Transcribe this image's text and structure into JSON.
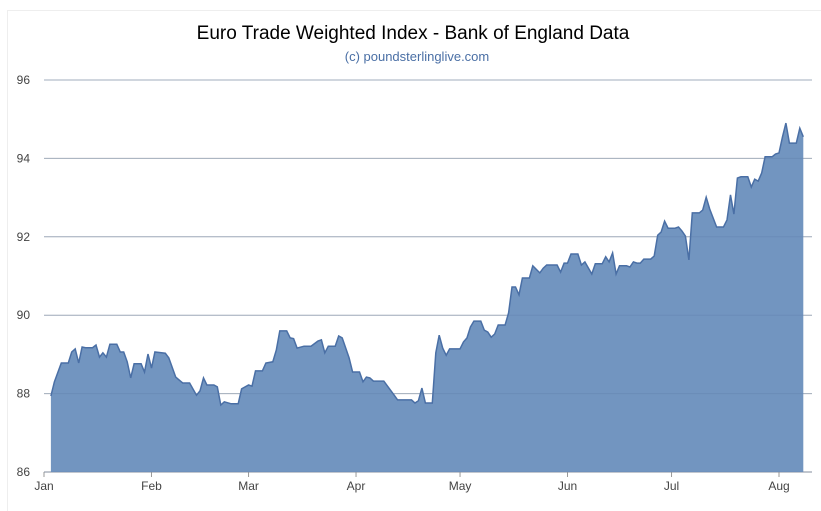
{
  "chart_data": {
    "type": "area",
    "title": "Euro Trade Weighted Index - Bank of England Data",
    "subtitle": "(c) poundsterlinglive.com",
    "xlabel": "",
    "ylabel": "",
    "ylim": [
      86,
      96
    ],
    "yticks": [
      "86",
      "88",
      "90",
      "92",
      "94",
      "96"
    ],
    "xticks": [
      "Jan",
      "Feb",
      "Mar",
      "Apr",
      "May",
      "Jun",
      "Jul",
      "Aug"
    ],
    "grid": true,
    "legend": "none",
    "colors": {
      "fill": "#7295c0",
      "line": "#4a6fa5",
      "grid": "#c8c8c8"
    },
    "x": [
      "01-03",
      "01-04",
      "01-06",
      "01-08",
      "01-09",
      "01-10",
      "01-11",
      "01-12",
      "01-13",
      "01-15",
      "01-16",
      "01-17",
      "01-18",
      "01-19",
      "01-20",
      "01-22",
      "01-23",
      "01-24",
      "01-25",
      "01-26",
      "01-27",
      "01-29",
      "01-30",
      "01-31",
      "02-01",
      "02-02",
      "02-05",
      "02-06",
      "02-08",
      "02-10",
      "02-12",
      "02-14",
      "02-15",
      "02-16",
      "02-17",
      "02-19",
      "02-20",
      "02-21",
      "02-22",
      "02-24",
      "02-26",
      "02-27",
      "03-01",
      "03-02",
      "03-03",
      "03-05",
      "03-06",
      "03-08",
      "03-09",
      "03-10",
      "03-12",
      "03-13",
      "03-14",
      "03-15",
      "03-17",
      "03-19",
      "03-21",
      "03-22",
      "03-23",
      "03-24",
      "03-26",
      "03-27",
      "03-28",
      "03-30",
      "03-31",
      "04-02",
      "04-03",
      "04-04",
      "04-05",
      "04-06",
      "04-09",
      "04-12",
      "04-13",
      "04-17",
      "04-18",
      "04-19",
      "04-20",
      "04-21",
      "04-23",
      "04-24",
      "04-25",
      "04-26",
      "04-27",
      "04-28",
      "05-01",
      "05-02",
      "05-03",
      "05-04",
      "05-05",
      "05-07",
      "05-08",
      "05-09",
      "05-10",
      "05-11",
      "05-12",
      "05-14",
      "05-15",
      "05-16",
      "05-17",
      "05-18",
      "05-19",
      "05-21",
      "05-22",
      "05-24",
      "05-25",
      "05-26",
      "05-29",
      "05-30",
      "05-31",
      "06-01",
      "06-02",
      "06-04",
      "06-05",
      "06-06",
      "06-08",
      "06-09",
      "06-11",
      "06-12",
      "06-13",
      "06-14",
      "06-15",
      "06-16",
      "06-18",
      "06-19",
      "06-20",
      "06-21",
      "06-22",
      "06-23",
      "06-25",
      "06-26",
      "06-27",
      "06-28",
      "06-29",
      "06-30",
      "07-02",
      "07-03",
      "07-04",
      "07-05",
      "07-06",
      "07-07",
      "07-09",
      "07-10",
      "07-11",
      "07-12",
      "07-14",
      "07-16",
      "07-17",
      "07-18",
      "07-19",
      "07-20",
      "07-21",
      "07-23",
      "07-24",
      "07-25",
      "07-26",
      "07-27",
      "07-28",
      "07-30",
      "07-31",
      "08-01",
      "08-02",
      "08-03",
      "08-04",
      "08-06",
      "08-07",
      "08-08"
    ],
    "values": [
      87.94,
      88.3,
      88.78,
      88.78,
      89.06,
      89.14,
      88.78,
      89.19,
      89.17,
      89.17,
      89.24,
      88.93,
      89.04,
      88.93,
      89.26,
      89.26,
      89.06,
      89.06,
      88.81,
      88.4,
      88.76,
      88.76,
      88.55,
      89.01,
      88.65,
      89.06,
      89.03,
      88.91,
      88.42,
      88.27,
      88.27,
      87.96,
      88.07,
      88.4,
      88.22,
      88.22,
      88.17,
      87.71,
      87.79,
      87.74,
      87.74,
      88.12,
      88.22,
      88.19,
      88.58,
      88.58,
      88.78,
      88.81,
      89.11,
      89.6,
      89.6,
      89.42,
      89.4,
      89.16,
      89.21,
      89.21,
      89.34,
      89.37,
      89.04,
      89.21,
      89.21,
      89.47,
      89.42,
      88.91,
      88.55,
      88.55,
      88.3,
      88.42,
      88.4,
      88.32,
      88.32,
      87.96,
      87.84,
      87.84,
      87.76,
      87.82,
      88.14,
      87.76,
      87.76,
      89.04,
      89.49,
      89.16,
      88.98,
      89.14,
      89.14,
      89.32,
      89.42,
      89.7,
      89.85,
      89.85,
      89.62,
      89.57,
      89.44,
      89.52,
      89.75,
      89.75,
      90.06,
      90.72,
      90.72,
      90.52,
      90.95,
      90.95,
      91.26,
      91.08,
      91.2,
      91.28,
      91.28,
      91.1,
      91.33,
      91.33,
      91.56,
      91.56,
      91.28,
      91.36,
      91.05,
      91.31,
      91.31,
      91.49,
      91.36,
      91.59,
      91.05,
      91.26,
      91.26,
      91.23,
      91.36,
      91.33,
      91.33,
      91.43,
      91.43,
      91.51,
      92.04,
      92.12,
      92.4,
      92.22,
      92.22,
      92.25,
      92.15,
      92.02,
      91.41,
      92.61,
      92.61,
      92.68,
      93.01,
      92.71,
      92.25,
      92.25,
      92.43,
      93.07,
      92.58,
      93.5,
      93.53,
      93.53,
      93.27,
      93.47,
      93.42,
      93.63,
      94.04,
      94.04,
      94.11,
      94.14,
      94.55,
      94.9,
      94.39,
      94.39,
      94.77,
      94.55
    ]
  }
}
